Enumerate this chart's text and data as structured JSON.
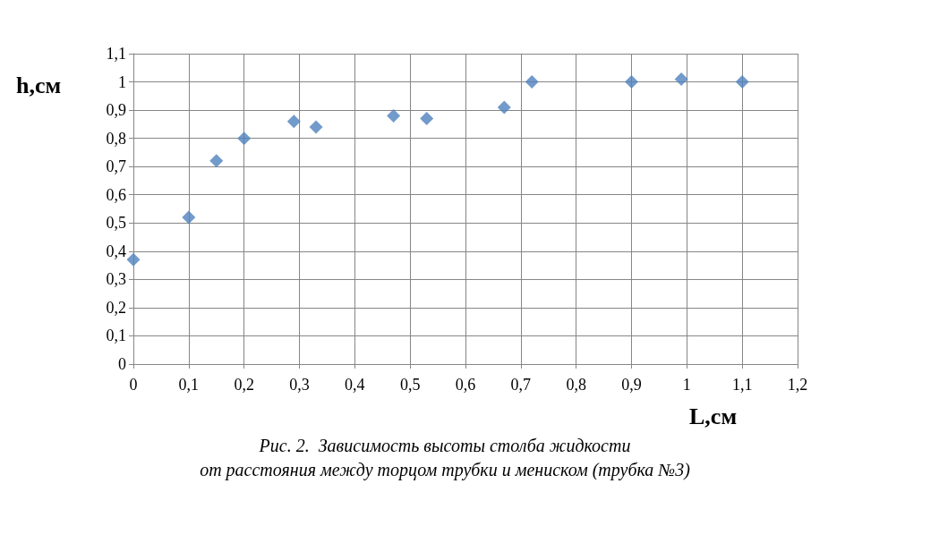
{
  "chart_data": {
    "type": "scatter",
    "xlabel": "L,см",
    "ylabel": "h,см",
    "annotations": [
      "Рис. 2.  Зависимость высоты столба жидкости",
      "от расстояния между торцом трубки и мениском (трубка №3)"
    ],
    "x": [
      0,
      0.1,
      0.15,
      0.2,
      0.29,
      0.33,
      0.47,
      0.53,
      0.67,
      0.72,
      0.9,
      0.99,
      1.1
    ],
    "series": [
      {
        "color": "#4f81bd",
        "values": [
          0.37,
          0.52,
          0.72,
          0.8,
          0.86,
          0.84,
          0.88,
          0.87,
          0.91,
          1.0,
          1.0,
          1.01,
          1.0
        ]
      }
    ],
    "marker": "diamond",
    "grid": true,
    "xlim": [
      0,
      1.2
    ],
    "xticks": [
      0,
      {
        "value": 0.1,
        "label": "0,1"
      },
      {
        "value": 0.2,
        "label": "0,2"
      },
      {
        "value": 0.3,
        "label": "0,3"
      },
      {
        "value": 0.4,
        "label": "0,4"
      },
      {
        "value": 0.5,
        "label": "0,5"
      },
      {
        "value": 0.6,
        "label": "0,6"
      },
      {
        "value": 0.7,
        "label": "0,7"
      },
      {
        "value": 0.8,
        "label": "0,8"
      },
      {
        "value": 0.9,
        "label": "0,9"
      },
      1,
      {
        "value": 1.1,
        "label": "1,1"
      },
      {
        "value": 1.2,
        "label": "1,2"
      }
    ],
    "ylim": [
      0,
      1.1
    ],
    "yticks": [
      0,
      {
        "value": 0.1,
        "label": "0,1"
      },
      {
        "value": 0.2,
        "label": "0,2"
      },
      {
        "value": 0.3,
        "label": "0,3"
      },
      {
        "value": 0.4,
        "label": "0,4"
      },
      {
        "value": 0.5,
        "label": "0,5"
      },
      {
        "value": 0.6,
        "label": "0,6"
      },
      {
        "value": 0.7,
        "label": "0,7"
      },
      {
        "value": 0.8,
        "label": "0,8"
      },
      {
        "value": 0.9,
        "label": "0,9"
      },
      1,
      {
        "value": 1.1,
        "label": "1,1"
      }
    ]
  }
}
